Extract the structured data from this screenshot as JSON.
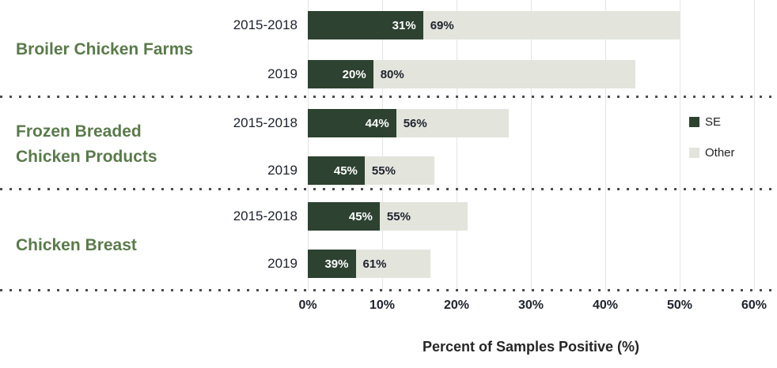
{
  "chart_data": {
    "type": "bar",
    "orientation": "horizontal",
    "stacked": true,
    "xlabel": "Percent of Samples Positive (%)",
    "xlim": [
      0,
      60
    ],
    "x_ticks": [
      "0%",
      "10%",
      "20%",
      "30%",
      "40%",
      "50%",
      "60%"
    ],
    "grid": "vertical",
    "legend_position": "right",
    "legend": [
      {
        "name": "SE",
        "color": "#2d4230"
      },
      {
        "name": "Other",
        "color": "#e3e5dd"
      }
    ],
    "groups": [
      {
        "category": "Broiler Chicken Farms",
        "category_lines": [
          "Broiler Chicken Farms"
        ],
        "bars": [
          {
            "period": "2015-2018",
            "total_percent_positive": 50,
            "se_share": 31,
            "other_share": 69,
            "se_label": "31%",
            "other_label": "69%"
          },
          {
            "period": "2019",
            "total_percent_positive": 44,
            "se_share": 20,
            "other_share": 80,
            "se_label": "20%",
            "other_label": "80%"
          }
        ]
      },
      {
        "category": "Frozen Breaded Chicken Products",
        "category_lines": [
          "Frozen Breaded",
          "Chicken Products"
        ],
        "bars": [
          {
            "period": "2015-2018",
            "total_percent_positive": 27,
            "se_share": 44,
            "other_share": 56,
            "se_label": "44%",
            "other_label": "56%"
          },
          {
            "period": "2019",
            "total_percent_positive": 17,
            "se_share": 45,
            "other_share": 55,
            "se_label": "45%",
            "other_label": "55%"
          }
        ]
      },
      {
        "category": "Chicken Breast",
        "category_lines": [
          "Chicken Breast"
        ],
        "bars": [
          {
            "period": "2015-2018",
            "total_percent_positive": 21.5,
            "se_share": 45,
            "other_share": 55,
            "se_label": "45%",
            "other_label": "55%"
          },
          {
            "period": "2019",
            "total_percent_positive": 16.5,
            "se_share": 39,
            "other_share": 61,
            "se_label": "39%",
            "other_label": "61%"
          }
        ]
      }
    ],
    "colors": {
      "se_segment": "#2d4230",
      "other_segment": "#e3e5dd",
      "category_label": "#5a7a4b",
      "dark_text": "#20242e",
      "gridline": "#e4e4e4",
      "separator_dots": "#4c4c4c"
    }
  }
}
